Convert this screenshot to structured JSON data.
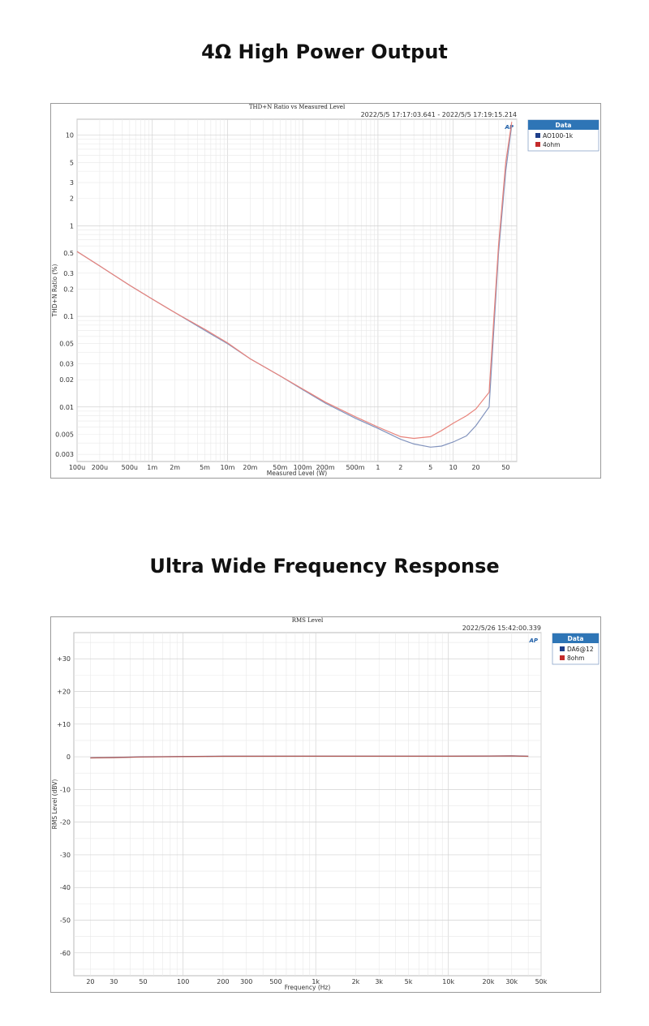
{
  "sections": [
    {
      "heading": "4Ω High Power Output"
    },
    {
      "heading": "Ultra Wide Frequency Response"
    }
  ],
  "chart_data": [
    {
      "type": "line",
      "title": "THD+N Ratio vs Measured Level",
      "timestamp": "2022/5/5 17:17:03.641 -   2022/5/5 17:19:15.214",
      "xlabel": "Measured Level (W)",
      "ylabel": "THD+N Ratio (%)",
      "xscale": "log",
      "yscale": "log",
      "xlim": [
        0.0001,
        70
      ],
      "ylim": [
        0.0025,
        15
      ],
      "x_ticks": [
        {
          "v": 0.0001,
          "label": "100u"
        },
        {
          "v": 0.0002,
          "label": "200u"
        },
        {
          "v": 0.0005,
          "label": "500u"
        },
        {
          "v": 0.001,
          "label": "1m"
        },
        {
          "v": 0.002,
          "label": "2m"
        },
        {
          "v": 0.005,
          "label": "5m"
        },
        {
          "v": 0.01,
          "label": "10m"
        },
        {
          "v": 0.02,
          "label": "20m"
        },
        {
          "v": 0.05,
          "label": "50m"
        },
        {
          "v": 0.1,
          "label": "100m"
        },
        {
          "v": 0.2,
          "label": "200m"
        },
        {
          "v": 0.5,
          "label": "500m"
        },
        {
          "v": 1,
          "label": "1"
        },
        {
          "v": 2,
          "label": "2"
        },
        {
          "v": 5,
          "label": "5"
        },
        {
          "v": 10,
          "label": "10"
        },
        {
          "v": 20,
          "label": "20"
        },
        {
          "v": 50,
          "label": "50"
        }
      ],
      "y_ticks": [
        {
          "v": 10,
          "label": "10"
        },
        {
          "v": 5,
          "label": "5"
        },
        {
          "v": 3,
          "label": "3"
        },
        {
          "v": 2,
          "label": "2"
        },
        {
          "v": 1,
          "label": "1"
        },
        {
          "v": 0.5,
          "label": "0.5"
        },
        {
          "v": 0.3,
          "label": "0.3"
        },
        {
          "v": 0.2,
          "label": "0.2"
        },
        {
          "v": 0.1,
          "label": "0.1"
        },
        {
          "v": 0.05,
          "label": "0.05"
        },
        {
          "v": 0.03,
          "label": "0.03"
        },
        {
          "v": 0.02,
          "label": "0.02"
        },
        {
          "v": 0.01,
          "label": "0.01"
        },
        {
          "v": 0.005,
          "label": "0.005"
        },
        {
          "v": 0.003,
          "label": "0.003"
        }
      ],
      "legend": {
        "title": "Data",
        "position": "right"
      },
      "series": [
        {
          "name": "AO100-1k",
          "color": "#8293bd",
          "swatch": "#1f3f8a",
          "points": [
            [
              0.0001,
              0.52
            ],
            [
              0.0002,
              0.36
            ],
            [
              0.0005,
              0.22
            ],
            [
              0.001,
              0.155
            ],
            [
              0.002,
              0.11
            ],
            [
              0.005,
              0.07
            ],
            [
              0.01,
              0.05
            ],
            [
              0.02,
              0.034
            ],
            [
              0.05,
              0.022
            ],
            [
              0.1,
              0.0155
            ],
            [
              0.2,
              0.011
            ],
            [
              0.5,
              0.0075
            ],
            [
              1,
              0.0058
            ],
            [
              2,
              0.0044
            ],
            [
              3,
              0.0039
            ],
            [
              5,
              0.0036
            ],
            [
              7,
              0.0037
            ],
            [
              10,
              0.0041
            ],
            [
              15,
              0.0048
            ],
            [
              20,
              0.0062
            ],
            [
              30,
              0.01
            ],
            [
              40,
              0.5
            ],
            [
              50,
              4
            ],
            [
              60,
              13
            ]
          ]
        },
        {
          "name": "4ohm",
          "color": "#e8837b",
          "swatch": "#c42b2b",
          "points": [
            [
              0.0001,
              0.52
            ],
            [
              0.0002,
              0.36
            ],
            [
              0.0005,
              0.22
            ],
            [
              0.001,
              0.155
            ],
            [
              0.002,
              0.11
            ],
            [
              0.005,
              0.072
            ],
            [
              0.01,
              0.051
            ],
            [
              0.02,
              0.034
            ],
            [
              0.05,
              0.022
            ],
            [
              0.1,
              0.0158
            ],
            [
              0.2,
              0.0113
            ],
            [
              0.5,
              0.0078
            ],
            [
              1,
              0.006
            ],
            [
              2,
              0.0047
            ],
            [
              3,
              0.0045
            ],
            [
              5,
              0.0047
            ],
            [
              7,
              0.0055
            ],
            [
              10,
              0.0066
            ],
            [
              15,
              0.008
            ],
            [
              20,
              0.0095
            ],
            [
              30,
              0.0145
            ],
            [
              40,
              0.6
            ],
            [
              50,
              5
            ],
            [
              60,
              14
            ]
          ]
        }
      ]
    },
    {
      "type": "line",
      "title": "RMS Level",
      "timestamp": "2022/5/26 15:42:00.339",
      "xlabel": "Frequency (Hz)",
      "ylabel": "RMS Level (dBV)",
      "xscale": "log",
      "yscale": "linear",
      "xlim": [
        15,
        50000
      ],
      "ylim": [
        -67,
        38
      ],
      "x_ticks": [
        {
          "v": 20,
          "label": "20"
        },
        {
          "v": 30,
          "label": "30"
        },
        {
          "v": 50,
          "label": "50"
        },
        {
          "v": 100,
          "label": "100"
        },
        {
          "v": 200,
          "label": "200"
        },
        {
          "v": 300,
          "label": "300"
        },
        {
          "v": 500,
          "label": "500"
        },
        {
          "v": 1000,
          "label": "1k"
        },
        {
          "v": 2000,
          "label": "2k"
        },
        {
          "v": 3000,
          "label": "3k"
        },
        {
          "v": 5000,
          "label": "5k"
        },
        {
          "v": 10000,
          "label": "10k"
        },
        {
          "v": 20000,
          "label": "20k"
        },
        {
          "v": 30000,
          "label": "30k"
        },
        {
          "v": 50000,
          "label": "50k"
        }
      ],
      "y_ticks": [
        {
          "v": 30,
          "label": "+30"
        },
        {
          "v": 20,
          "label": "+20"
        },
        {
          "v": 10,
          "label": "+10"
        },
        {
          "v": 0,
          "label": "0"
        },
        {
          "v": -10,
          "label": "-10"
        },
        {
          "v": -20,
          "label": "-20"
        },
        {
          "v": -30,
          "label": "-30"
        },
        {
          "v": -40,
          "label": "-40"
        },
        {
          "v": -50,
          "label": "-50"
        },
        {
          "v": -60,
          "label": "-60"
        }
      ],
      "legend": {
        "title": "Data",
        "position": "right"
      },
      "series": [
        {
          "name": "DA6@12",
          "color": "#6a5a8a",
          "swatch": "#1f3f8a",
          "points": [
            [
              20,
              -0.3
            ],
            [
              30,
              -0.2
            ],
            [
              50,
              0.0
            ],
            [
              100,
              0.1
            ],
            [
              200,
              0.2
            ],
            [
              1000,
              0.2
            ],
            [
              5000,
              0.2
            ],
            [
              10000,
              0.2
            ],
            [
              20000,
              0.25
            ],
            [
              30000,
              0.3
            ],
            [
              40000,
              0.2
            ]
          ]
        },
        {
          "name": "8ohm",
          "color": "#b05a55",
          "swatch": "#c42b2b",
          "points": [
            [
              20,
              -0.35
            ],
            [
              30,
              -0.25
            ],
            [
              50,
              -0.05
            ],
            [
              100,
              0.05
            ],
            [
              200,
              0.15
            ],
            [
              1000,
              0.18
            ],
            [
              5000,
              0.18
            ],
            [
              10000,
              0.18
            ],
            [
              20000,
              0.22
            ],
            [
              30000,
              0.25
            ],
            [
              40000,
              0.15
            ]
          ]
        }
      ]
    }
  ]
}
